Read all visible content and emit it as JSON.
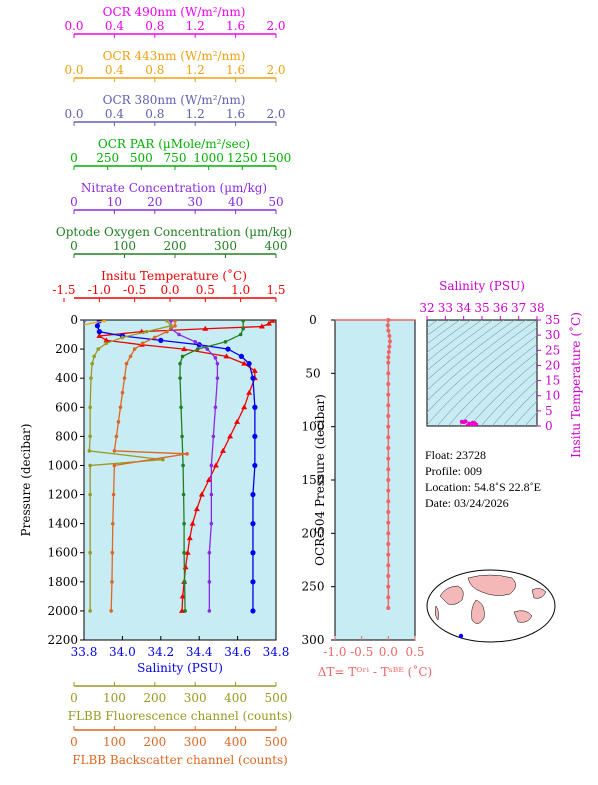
{
  "chart_data": [
    {
      "type": "line",
      "panel": "main-profile",
      "ylabel": "Pressure (decibar)",
      "ylim": [
        2200,
        0
      ],
      "yticks": [
        "0",
        "200",
        "400",
        "600",
        "800",
        "1000",
        "1200",
        "1400",
        "1600",
        "1800",
        "2000",
        "2200"
      ],
      "background": "#c8ecf4",
      "top_axes": [
        {
          "key": "ocr490",
          "label": "OCR 490nm (W/m²/nm)",
          "ticks": [
            "0.0",
            "0.4",
            "0.8",
            "1.2",
            "1.6",
            "2.0"
          ],
          "range": [
            0,
            2
          ],
          "color": "#ee00ee"
        },
        {
          "key": "ocr443",
          "label": "OCR 443nm (W/m²/nm)",
          "ticks": [
            "0.0",
            "0.4",
            "0.8",
            "1.2",
            "1.6",
            "2.0"
          ],
          "range": [
            0,
            2
          ],
          "color": "#f0a010"
        },
        {
          "key": "ocr380",
          "label": "OCR 380nm (W/m²/nm)",
          "ticks": [
            "0.0",
            "0.4",
            "0.8",
            "1.2",
            "1.6",
            "2.0"
          ],
          "range": [
            0,
            2
          ],
          "color": "#6060b0"
        },
        {
          "key": "par",
          "label": "OCR PAR (µMole/m²/sec)",
          "ticks": [
            "0",
            "250",
            "500",
            "750",
            "1000",
            "1250",
            "1500"
          ],
          "range": [
            0,
            1500
          ],
          "color": "#00b000"
        },
        {
          "key": "nitrate",
          "label": "Nitrate Concentration (µm/kg)",
          "ticks": [
            "0",
            "10",
            "20",
            "30",
            "40",
            "50"
          ],
          "range": [
            0,
            50
          ],
          "color": "#8a2be2"
        },
        {
          "key": "oxygen",
          "label": "Optode Oxygen Concentration (µm/kg)",
          "ticks": [
            "0",
            "100",
            "200",
            "300",
            "400"
          ],
          "range": [
            0,
            400
          ],
          "color": "#208020"
        },
        {
          "key": "temp",
          "label": "Insitu Temperature (˚C)",
          "ticks": [
            "-1.5",
            "-1.0",
            "-0.5",
            "0.0",
            "0.5",
            "1.0",
            "1.5"
          ],
          "range": [
            -1.5,
            1.5
          ],
          "color": "#ee0000"
        }
      ],
      "bottom_axes": [
        {
          "key": "sal",
          "label": "Salinity (PSU)",
          "ticks": [
            "33.8",
            "34.0",
            "34.2",
            "34.4",
            "34.6",
            "34.8"
          ],
          "range": [
            33.8,
            34.8
          ],
          "color": "#0000ee"
        },
        {
          "key": "fluor",
          "label": "FLBB Fluorescence channel (counts)",
          "ticks": [
            "0",
            "100",
            "200",
            "300",
            "400",
            "500"
          ],
          "range": [
            0,
            500
          ],
          "color": "#999922"
        },
        {
          "key": "bback",
          "label": "FLBB Backscatter channel (counts)",
          "ticks": [
            "0",
            "100",
            "200",
            "300",
            "400",
            "500"
          ],
          "range": [
            0,
            500
          ],
          "color": "#dd6622"
        }
      ],
      "series": [
        {
          "axis": "temp",
          "marker": "triangle",
          "color": "#ee0000",
          "points": [
            [
              1.45,
              5
            ],
            [
              1.4,
              25
            ],
            [
              1.3,
              45
            ],
            [
              0.5,
              60
            ],
            [
              -0.4,
              80
            ],
            [
              -1.0,
              110
            ],
            [
              -0.9,
              140
            ],
            [
              -0.4,
              170
            ],
            [
              0.2,
              200
            ],
            [
              0.8,
              250
            ],
            [
              1.05,
              300
            ],
            [
              1.2,
              350
            ],
            [
              1.2,
              400
            ],
            [
              1.12,
              500
            ],
            [
              1.05,
              600
            ],
            [
              0.95,
              700
            ],
            [
              0.85,
              800
            ],
            [
              0.75,
              900
            ],
            [
              0.65,
              1000
            ],
            [
              0.55,
              1100
            ],
            [
              0.45,
              1200
            ],
            [
              0.38,
              1300
            ],
            [
              0.32,
              1400
            ],
            [
              0.28,
              1500
            ],
            [
              0.25,
              1600
            ],
            [
              0.22,
              1700
            ],
            [
              0.2,
              1800
            ],
            [
              0.18,
              1900
            ],
            [
              0.17,
              2000
            ]
          ]
        },
        {
          "axis": "sal",
          "marker": "circle",
          "color": "#0000ee",
          "points": [
            [
              33.88,
              5
            ],
            [
              33.87,
              40
            ],
            [
              33.88,
              80
            ],
            [
              34.0,
              110
            ],
            [
              34.2,
              140
            ],
            [
              34.4,
              170
            ],
            [
              34.55,
              200
            ],
            [
              34.62,
              250
            ],
            [
              34.66,
              300
            ],
            [
              34.68,
              400
            ],
            [
              34.69,
              600
            ],
            [
              34.69,
              800
            ],
            [
              34.69,
              1000
            ],
            [
              34.68,
              1200
            ],
            [
              34.68,
              1400
            ],
            [
              34.68,
              1600
            ],
            [
              34.68,
              1800
            ],
            [
              34.68,
              2000
            ]
          ]
        },
        {
          "axis": "nitrate",
          "marker": "dot",
          "color": "#8a2be2",
          "points": [
            [
              24,
              5
            ],
            [
              24,
              60
            ],
            [
              26,
              100
            ],
            [
              30,
              150
            ],
            [
              33,
              200
            ],
            [
              35,
              260
            ],
            [
              35.5,
              300
            ],
            [
              35.5,
              400
            ],
            [
              35,
              600
            ],
            [
              34.5,
              800
            ],
            [
              34,
              1000
            ],
            [
              34,
              1200
            ],
            [
              34,
              1400
            ],
            [
              33.5,
              1600
            ],
            [
              33.5,
              1800
            ],
            [
              33.5,
              2000
            ]
          ]
        },
        {
          "axis": "oxygen",
          "marker": "dot",
          "color": "#208020",
          "points": [
            [
              335,
              5
            ],
            [
              335,
              60
            ],
            [
              330,
              100
            ],
            [
              300,
              150
            ],
            [
              245,
              200
            ],
            [
              215,
              250
            ],
            [
              210,
              300
            ],
            [
              210,
              400
            ],
            [
              212,
              600
            ],
            [
              214,
              800
            ],
            [
              216,
              1000
            ],
            [
              217,
              1200
            ],
            [
              218,
              1400
            ],
            [
              218,
              1600
            ],
            [
              219,
              1800
            ],
            [
              220,
              2000
            ]
          ]
        },
        {
          "axis": "par",
          "marker": "dot",
          "color": "#00b000",
          "points": [
            [
              60,
              5
            ],
            [
              10,
              30
            ],
            [
              2,
              60
            ],
            [
              0,
              100
            ],
            [
              0,
              400
            ],
            [
              0,
              2000
            ]
          ]
        },
        {
          "axis": "ocr490",
          "marker": "dot",
          "color": "#ee00ee",
          "points": [
            [
              0.05,
              5
            ],
            [
              0.01,
              40
            ],
            [
              0,
              80
            ],
            [
              0,
              300
            ],
            [
              0,
              2000
            ]
          ]
        },
        {
          "axis": "ocr443",
          "marker": "dot",
          "color": "#f0a010",
          "points": [
            [
              0.3,
              5
            ],
            [
              0.05,
              40
            ],
            [
              0,
              80
            ],
            [
              0,
              300
            ],
            [
              0,
              2000
            ]
          ]
        },
        {
          "axis": "ocr380",
          "marker": "dot",
          "color": "#6060b0",
          "points": [
            [
              0.1,
              5
            ],
            [
              0.02,
              40
            ],
            [
              0,
              80
            ],
            [
              0,
              300
            ],
            [
              0,
              2000
            ]
          ]
        },
        {
          "axis": "fluor",
          "marker": "dot",
          "color": "#999922",
          "points": [
            [
              230,
              5
            ],
            [
              240,
              40
            ],
            [
              180,
              80
            ],
            [
              120,
              120
            ],
            [
              80,
              160
            ],
            [
              60,
              200
            ],
            [
              50,
              250
            ],
            [
              45,
              300
            ],
            [
              42,
              400
            ],
            [
              40,
              600
            ],
            [
              40,
              800
            ],
            [
              38,
              900
            ],
            [
              220,
              960
            ],
            [
              40,
              1000
            ],
            [
              40,
              1200
            ],
            [
              40,
              1600
            ],
            [
              40,
              2000
            ]
          ]
        },
        {
          "axis": "bback",
          "marker": "dot",
          "color": "#dd6622",
          "points": [
            [
              250,
              5
            ],
            [
              250,
              40
            ],
            [
              230,
              80
            ],
            [
              200,
              120
            ],
            [
              170,
              160
            ],
            [
              150,
              200
            ],
            [
              140,
              250
            ],
            [
              130,
              300
            ],
            [
              125,
              400
            ],
            [
              120,
              500
            ],
            [
              115,
              600
            ],
            [
              110,
              700
            ],
            [
              105,
              800
            ],
            [
              100,
              900
            ],
            [
              280,
              920
            ],
            [
              100,
              1000
            ],
            [
              98,
              1200
            ],
            [
              96,
              1400
            ],
            [
              95,
              1600
            ],
            [
              94,
              1800
            ],
            [
              92,
              2000
            ]
          ]
        }
      ]
    },
    {
      "type": "line",
      "panel": "ocr504-delta-t",
      "ylabel": "OCR-504 Pressure (decibar)",
      "yticks": [
        "0",
        "50",
        "100",
        "150",
        "200",
        "250",
        "300"
      ],
      "ylim": [
        300,
        0
      ],
      "xlabel": "ΔT= T^Ori - T^SBE (˚C)",
      "xticks": [
        "-1.0",
        "-0.5",
        "0.0",
        "0.5"
      ],
      "xlim": [
        -1.0,
        0.5
      ],
      "series": [
        {
          "marker": "dot",
          "color": "#ee6666",
          "points": [
            [
              0.0,
              0
            ],
            [
              -0.01,
              5
            ],
            [
              0.0,
              10
            ],
            [
              0.02,
              15
            ],
            [
              0.03,
              20
            ],
            [
              0.02,
              25
            ],
            [
              0.01,
              30
            ],
            [
              0.0,
              35
            ],
            [
              0.0,
              40
            ],
            [
              0.0,
              50
            ],
            [
              0.0,
              60
            ],
            [
              0.0,
              70
            ],
            [
              0.0,
              80
            ],
            [
              0.0,
              90
            ],
            [
              0.0,
              100
            ],
            [
              0.0,
              110
            ],
            [
              0.0,
              120
            ],
            [
              0.0,
              130
            ],
            [
              0.0,
              140
            ],
            [
              0.0,
              150
            ],
            [
              0.0,
              160
            ],
            [
              0.0,
              170
            ],
            [
              0.0,
              180
            ],
            [
              0.0,
              190
            ],
            [
              0.0,
              200
            ],
            [
              0.0,
              210
            ],
            [
              0.0,
              220
            ],
            [
              0.0,
              230
            ],
            [
              0.0,
              240
            ],
            [
              0.0,
              250
            ],
            [
              0.0,
              260
            ],
            [
              0.0,
              270
            ]
          ]
        }
      ]
    },
    {
      "type": "scatter",
      "panel": "ts-diagram",
      "xlabel": "Salinity (PSU)",
      "xticks": [
        "32",
        "33",
        "34",
        "35",
        "36",
        "37",
        "38"
      ],
      "xlim": [
        32,
        38
      ],
      "ylabel": "Insitu Temperature (˚C)",
      "yticks": [
        "0",
        "5",
        "10",
        "15",
        "20",
        "25",
        "30",
        "35"
      ],
      "ylim": [
        0,
        35
      ],
      "points": [
        [
          33.9,
          1.4
        ],
        [
          34.0,
          1.3
        ],
        [
          34.1,
          1.5
        ],
        [
          34.3,
          0.8
        ],
        [
          34.5,
          1.1
        ],
        [
          34.6,
          0.9
        ],
        [
          34.68,
          0.5
        ],
        [
          34.5,
          0.2
        ],
        [
          34.2,
          0.0
        ]
      ]
    }
  ],
  "info": {
    "float": "Float:  23728",
    "profile": "Profile:  009",
    "location": "Location:  54.8˚S  22.8˚E",
    "date": "Date:  03/24/2026"
  }
}
